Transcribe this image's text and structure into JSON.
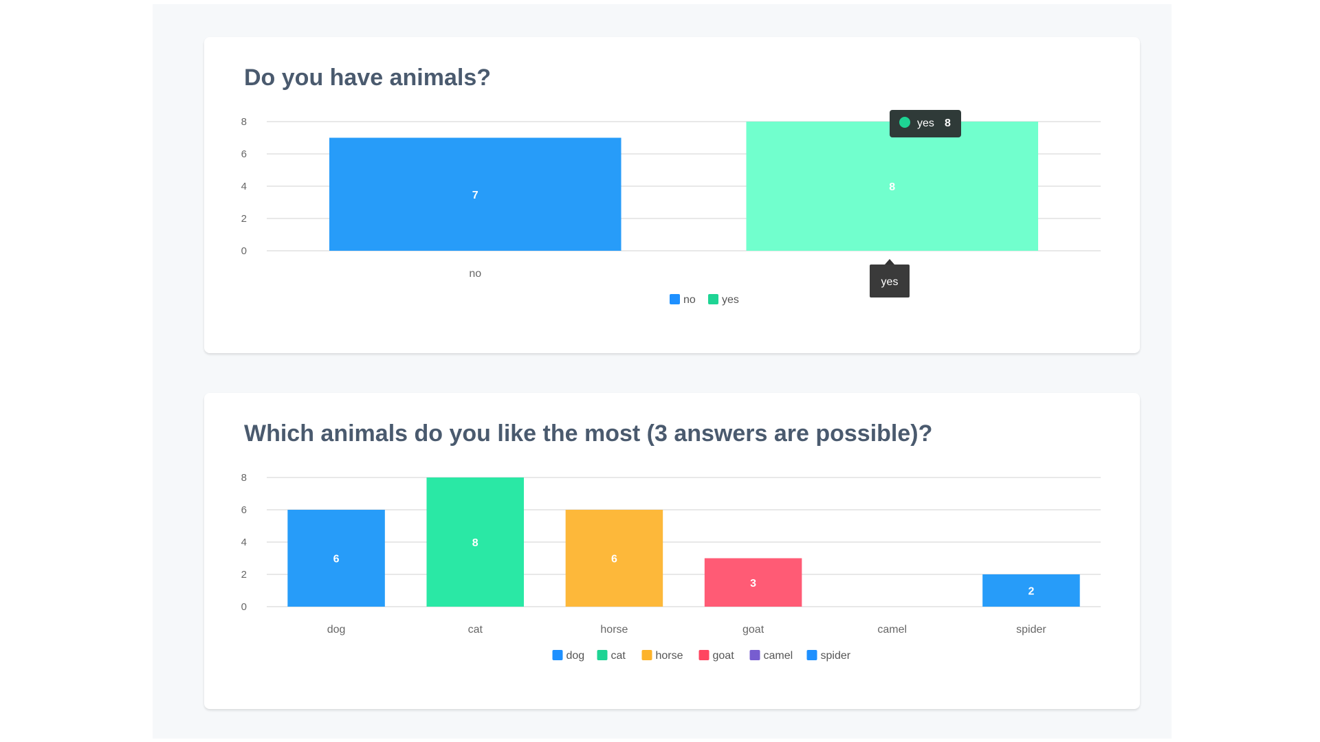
{
  "chart_data": [
    {
      "type": "bar",
      "title": "Do you have animals?",
      "categories": [
        "no",
        "yes"
      ],
      "values": [
        7,
        8
      ],
      "colors": [
        "#279cf9",
        "#71ffcd"
      ],
      "legend_colors": [
        "#1e90ff",
        "#1ed494"
      ],
      "ylim": [
        0,
        8
      ],
      "yticks": [
        0,
        2,
        4,
        6,
        8
      ],
      "grid": true,
      "legend": "bottom",
      "tooltip": {
        "label": "yes",
        "value": "8",
        "axis_label": "yes",
        "dot_color": "#1ed494"
      }
    },
    {
      "type": "bar",
      "title": "Which animals do you like the most (3 answers are possible)?",
      "categories": [
        "dog",
        "cat",
        "horse",
        "goat",
        "camel",
        "spider"
      ],
      "values": [
        6,
        8,
        6,
        3,
        0,
        2
      ],
      "colors": [
        "#279cf9",
        "#2ae8a5",
        "#fdb83a",
        "#ff5b75",
        "#7b5fd8",
        "#279cf9"
      ],
      "legend_colors": [
        "#1e90ff",
        "#1ed494",
        "#fdb32a",
        "#ff4560",
        "#775dd0",
        "#1e90ff"
      ],
      "ylim": [
        0,
        8
      ],
      "yticks": [
        0,
        2,
        4,
        6,
        8
      ],
      "grid": true,
      "legend": "bottom"
    }
  ]
}
